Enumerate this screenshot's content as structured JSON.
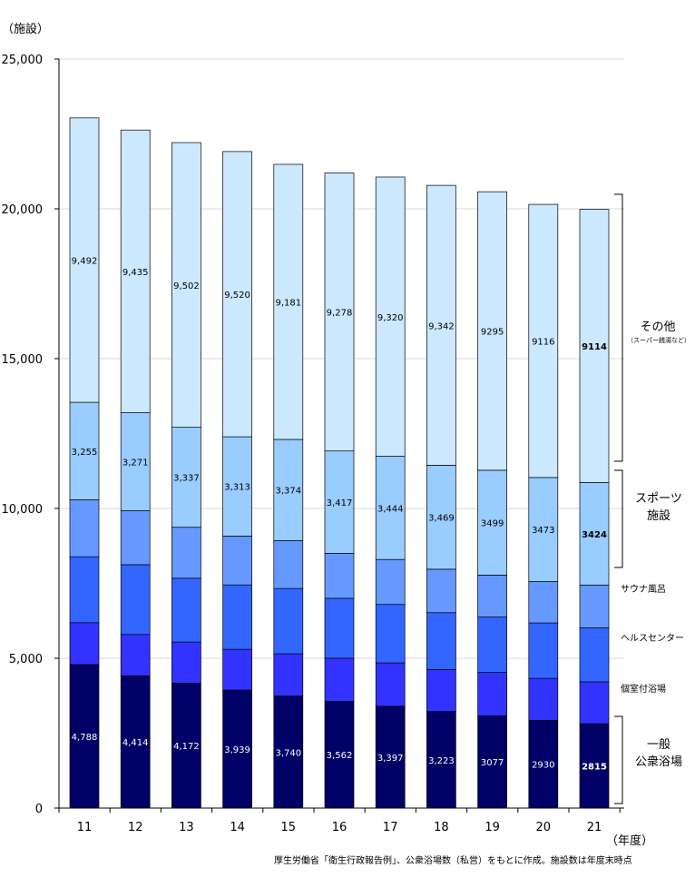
{
  "chart_data": {
    "type": "bar",
    "stacked": true,
    "y_unit_label": "（施設）",
    "x_unit_label": "（年度）",
    "ylim": [
      0,
      25000
    ],
    "y_ticks": [
      "0",
      "5,000",
      "10,000",
      "15,000",
      "20,000",
      "25,000"
    ],
    "y_tick_values": [
      0,
      5000,
      10000,
      15000,
      20000,
      25000
    ],
    "categories": [
      "11",
      "12",
      "13",
      "14",
      "15",
      "16",
      "17",
      "18",
      "19",
      "20",
      "21"
    ],
    "series": [
      {
        "name": "一般公衆浴場",
        "color": "#000066",
        "values": [
          4788,
          4414,
          4172,
          3939,
          3740,
          3562,
          3397,
          3223,
          3077,
          2930,
          2815
        ],
        "labels": [
          "4,788",
          "4,414",
          "4,172",
          "3,939",
          "3,740",
          "3,562",
          "3,397",
          "3,223",
          "3077",
          "2930",
          "2815"
        ],
        "label_color": "#ffffff"
      },
      {
        "name": "個室付浴場",
        "color": "#3333ff",
        "values": [
          1400,
          1380,
          1370,
          1360,
          1410,
          1440,
          1450,
          1400,
          1450,
          1400,
          1400
        ]
      },
      {
        "name": "ヘルスセンター",
        "color": "#3366ff",
        "values": [
          2200,
          2330,
          2130,
          2150,
          2180,
          2000,
          1950,
          1900,
          1850,
          1850,
          1800
        ]
      },
      {
        "name": "サウナ風呂",
        "color": "#6699ff",
        "values": [
          1900,
          1800,
          1700,
          1630,
          1600,
          1500,
          1500,
          1450,
          1400,
          1380,
          1430
        ]
      },
      {
        "name": "スポーツ施設",
        "color": "#99ccff",
        "values": [
          3255,
          3271,
          3337,
          3313,
          3374,
          3417,
          3444,
          3469,
          3499,
          3473,
          3424
        ],
        "labels": [
          "3,255",
          "3,271",
          "3,337",
          "3,313",
          "3,374",
          "3,417",
          "3,444",
          "3,469",
          "3499",
          "3473",
          "3424"
        ],
        "label_color": "#000000"
      },
      {
        "name": "その他",
        "color": "#cce8ff",
        "values": [
          9492,
          9435,
          9502,
          9520,
          9181,
          9278,
          9320,
          9342,
          9295,
          9116,
          9114
        ],
        "labels": [
          "9,492",
          "9,435",
          "9,502",
          "9,520",
          "9,181",
          "9,278",
          "9,320",
          "9,342",
          "9295",
          "9116",
          "9114"
        ],
        "label_color": "#000000"
      }
    ],
    "bold_label_category": "21",
    "legend": {
      "other": "その他",
      "other_sub": "（スーパー銭湯など）",
      "sports_1": "スポーツ",
      "sports_2": "施設",
      "sauna": "サウナ風呂",
      "health": "ヘルスセンター",
      "private": "個室付浴場",
      "general_1": "一般",
      "general_2": "公衆浴場"
    },
    "source_note": "厚生労働省「衛生行政報告例」、公衆浴場数（私営）をもとに作成。施設数は年度末時点",
    "grid": true,
    "grid_color": "#d9d9d9"
  }
}
